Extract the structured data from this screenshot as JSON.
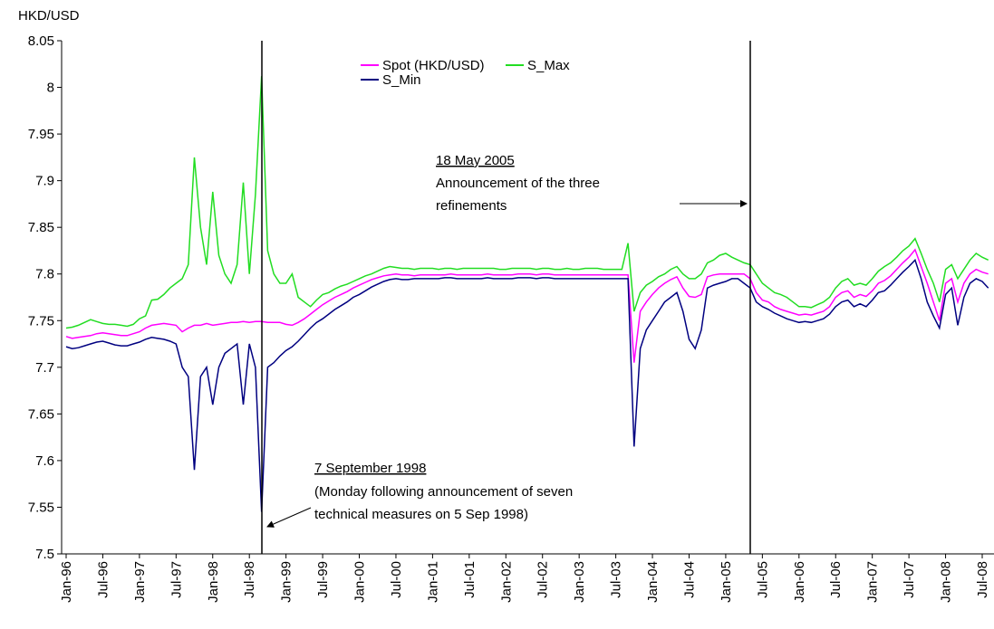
{
  "chart_data": {
    "type": "line",
    "y_label": "HKD/USD",
    "ylim": [
      7.5,
      8.05
    ],
    "yticks": [
      7.5,
      7.55,
      7.6,
      7.65,
      7.7,
      7.75,
      7.8,
      7.85,
      7.9,
      7.95,
      8,
      8.05
    ],
    "categories": [
      "Jan-96",
      null,
      null,
      null,
      null,
      null,
      "Jul-96",
      null,
      null,
      null,
      null,
      null,
      "Jan-97",
      null,
      null,
      null,
      null,
      null,
      "Jul-97",
      null,
      null,
      null,
      null,
      null,
      "Jan-98",
      null,
      null,
      null,
      null,
      null,
      "Jul-98",
      null,
      null,
      null,
      null,
      null,
      "Jan-99",
      null,
      null,
      null,
      null,
      null,
      "Jul-99",
      null,
      null,
      null,
      null,
      null,
      "Jan-00",
      null,
      null,
      null,
      null,
      null,
      "Jul-00",
      null,
      null,
      null,
      null,
      null,
      "Jan-01",
      null,
      null,
      null,
      null,
      null,
      "Jul-01",
      null,
      null,
      null,
      null,
      null,
      "Jan-02",
      null,
      null,
      null,
      null,
      null,
      "Jul-02",
      null,
      null,
      null,
      null,
      null,
      "Jan-03",
      null,
      null,
      null,
      null,
      null,
      "Jul-03",
      null,
      null,
      null,
      null,
      null,
      "Jan-04",
      null,
      null,
      null,
      null,
      null,
      "Jul-04",
      null,
      null,
      null,
      null,
      null,
      "Jan-05",
      null,
      null,
      null,
      null,
      null,
      "Jul-05",
      null,
      null,
      null,
      null,
      null,
      "Jan-06",
      null,
      null,
      null,
      null,
      null,
      "Jul-06",
      null,
      null,
      null,
      null,
      null,
      "Jan-07",
      null,
      null,
      null,
      null,
      null,
      "Jul-07",
      null,
      null,
      null,
      null,
      null,
      "Jan-08",
      null,
      null,
      null,
      null,
      null,
      "Jul-08",
      null
    ],
    "series": [
      {
        "name": "Spot (HKD/USD)",
        "color": "#ff00ff",
        "values": [
          7.733,
          7.731,
          7.732,
          7.733,
          7.734,
          7.736,
          7.737,
          7.736,
          7.735,
          7.734,
          7.734,
          7.736,
          7.738,
          7.742,
          7.745,
          7.746,
          7.747,
          7.746,
          7.745,
          7.738,
          7.742,
          7.745,
          7.745,
          7.747,
          7.745,
          7.746,
          7.747,
          7.748,
          7.748,
          7.749,
          7.748,
          7.749,
          7.749,
          7.748,
          7.748,
          7.748,
          7.746,
          7.745,
          7.748,
          7.752,
          7.757,
          7.762,
          7.767,
          7.771,
          7.775,
          7.778,
          7.781,
          7.785,
          7.788,
          7.791,
          7.794,
          7.796,
          7.798,
          7.799,
          7.8,
          7.799,
          7.799,
          7.798,
          7.799,
          7.799,
          7.799,
          7.799,
          7.799,
          7.8,
          7.799,
          7.799,
          7.799,
          7.799,
          7.799,
          7.8,
          7.799,
          7.799,
          7.799,
          7.799,
          7.8,
          7.8,
          7.8,
          7.799,
          7.8,
          7.8,
          7.799,
          7.799,
          7.799,
          7.799,
          7.799,
          7.799,
          7.799,
          7.799,
          7.799,
          7.799,
          7.799,
          7.799,
          7.799,
          7.705,
          7.76,
          7.77,
          7.778,
          7.785,
          7.79,
          7.794,
          7.797,
          7.785,
          7.776,
          7.775,
          7.778,
          7.797,
          7.799,
          7.8,
          7.8,
          7.8,
          7.8,
          7.8,
          7.795,
          7.78,
          7.772,
          7.77,
          7.765,
          7.762,
          7.76,
          7.758,
          7.756,
          7.757,
          7.756,
          7.758,
          7.76,
          7.765,
          7.775,
          7.78,
          7.782,
          7.775,
          7.778,
          7.776,
          7.782,
          7.79,
          7.793,
          7.798,
          7.805,
          7.812,
          7.818,
          7.826,
          7.808,
          7.79,
          7.77,
          7.75,
          7.79,
          7.795,
          7.77,
          7.79,
          7.8,
          7.805,
          7.802,
          7.8
        ]
      },
      {
        "name": "S_Max",
        "color": "#22dd22",
        "values": [
          7.742,
          7.743,
          7.745,
          7.748,
          7.751,
          7.749,
          7.747,
          7.746,
          7.746,
          7.745,
          7.744,
          7.746,
          7.752,
          7.755,
          7.772,
          7.773,
          7.778,
          7.785,
          7.79,
          7.795,
          7.81,
          7.925,
          7.85,
          7.81,
          7.888,
          7.82,
          7.8,
          7.79,
          7.81,
          7.898,
          7.8,
          7.885,
          8.012,
          7.825,
          7.8,
          7.79,
          7.79,
          7.8,
          7.775,
          7.77,
          7.765,
          7.772,
          7.778,
          7.78,
          7.784,
          7.787,
          7.789,
          7.792,
          7.795,
          7.798,
          7.8,
          7.803,
          7.806,
          7.808,
          7.807,
          7.806,
          7.806,
          7.805,
          7.806,
          7.806,
          7.806,
          7.805,
          7.806,
          7.806,
          7.805,
          7.806,
          7.806,
          7.806,
          7.806,
          7.806,
          7.806,
          7.805,
          7.805,
          7.806,
          7.806,
          7.806,
          7.806,
          7.805,
          7.806,
          7.806,
          7.805,
          7.805,
          7.806,
          7.805,
          7.805,
          7.806,
          7.806,
          7.806,
          7.805,
          7.805,
          7.805,
          7.805,
          7.833,
          7.76,
          7.78,
          7.788,
          7.792,
          7.797,
          7.8,
          7.805,
          7.808,
          7.8,
          7.795,
          7.795,
          7.8,
          7.812,
          7.815,
          7.82,
          7.822,
          7.818,
          7.815,
          7.812,
          7.81,
          7.8,
          7.79,
          7.785,
          7.78,
          7.778,
          7.775,
          7.77,
          7.765,
          7.765,
          7.764,
          7.767,
          7.77,
          7.775,
          7.785,
          7.792,
          7.795,
          7.788,
          7.79,
          7.788,
          7.795,
          7.803,
          7.808,
          7.812,
          7.818,
          7.825,
          7.83,
          7.838,
          7.822,
          7.805,
          7.79,
          7.77,
          7.805,
          7.81,
          7.795,
          7.805,
          7.815,
          7.822,
          7.818,
          7.815
        ]
      },
      {
        "name": "S_Min",
        "color": "#000080",
        "values": [
          7.722,
          7.72,
          7.721,
          7.723,
          7.725,
          7.727,
          7.728,
          7.726,
          7.724,
          7.723,
          7.723,
          7.725,
          7.727,
          7.73,
          7.732,
          7.731,
          7.73,
          7.728,
          7.725,
          7.7,
          7.69,
          7.59,
          7.69,
          7.7,
          7.66,
          7.7,
          7.715,
          7.72,
          7.725,
          7.66,
          7.725,
          7.7,
          7.545,
          7.7,
          7.705,
          7.712,
          7.718,
          7.722,
          7.728,
          7.735,
          7.742,
          7.748,
          7.752,
          7.757,
          7.762,
          7.766,
          7.77,
          7.775,
          7.778,
          7.782,
          7.786,
          7.789,
          7.792,
          7.794,
          7.795,
          7.794,
          7.794,
          7.795,
          7.795,
          7.795,
          7.795,
          7.795,
          7.796,
          7.796,
          7.795,
          7.795,
          7.795,
          7.795,
          7.795,
          7.796,
          7.795,
          7.795,
          7.795,
          7.795,
          7.796,
          7.796,
          7.796,
          7.795,
          7.796,
          7.796,
          7.795,
          7.795,
          7.795,
          7.795,
          7.795,
          7.795,
          7.795,
          7.795,
          7.795,
          7.795,
          7.795,
          7.795,
          7.795,
          7.615,
          7.72,
          7.74,
          7.75,
          7.76,
          7.77,
          7.775,
          7.78,
          7.76,
          7.73,
          7.72,
          7.74,
          7.785,
          7.788,
          7.79,
          7.792,
          7.795,
          7.795,
          7.79,
          7.785,
          7.77,
          7.765,
          7.762,
          7.758,
          7.755,
          7.752,
          7.75,
          7.748,
          7.749,
          7.748,
          7.75,
          7.752,
          7.757,
          7.765,
          7.77,
          7.772,
          7.765,
          7.768,
          7.765,
          7.772,
          7.78,
          7.782,
          7.788,
          7.795,
          7.802,
          7.808,
          7.815,
          7.795,
          7.77,
          7.755,
          7.742,
          7.778,
          7.785,
          7.745,
          7.775,
          7.79,
          7.795,
          7.792,
          7.785
        ]
      }
    ],
    "annotations": [
      {
        "lines": [
          "18 May 2005",
          "Announcement of the three",
          "refinements"
        ]
      },
      {
        "lines": [
          "7 September 1998",
          "(Monday following announcement of seven",
          "technical measures on 5 Sep 1998)"
        ]
      }
    ]
  }
}
